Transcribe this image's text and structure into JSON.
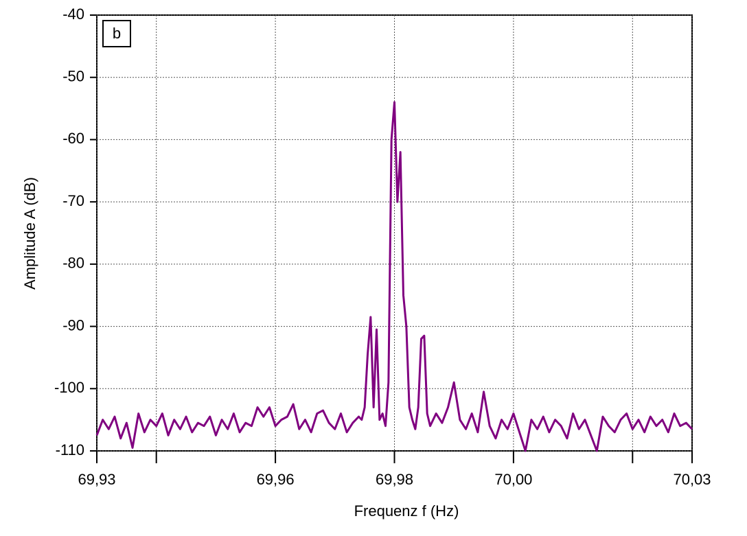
{
  "chart_data": {
    "type": "line",
    "annotation": "b",
    "xlabel": "Frequenz f (Hz)",
    "ylabel": "Amplitude A (dB)",
    "color": "#800080",
    "grid": true,
    "xlim": [
      69.93,
      70.03
    ],
    "ylim": [
      -110,
      -40
    ],
    "xticks": [
      {
        "value": 69.93,
        "label": "69,93"
      },
      {
        "value": 69.94,
        "label": null
      },
      {
        "value": 69.96,
        "label": "69,96"
      },
      {
        "value": 69.98,
        "label": "69,98"
      },
      {
        "value": 70.0,
        "label": "70,00"
      },
      {
        "value": 70.02,
        "label": null
      },
      {
        "value": 70.03,
        "label": "70,03"
      }
    ],
    "yticks": [
      -110,
      -100,
      -90,
      -80,
      -70,
      -60,
      -50,
      -40
    ],
    "x": [
      69.93,
      69.931,
      69.932,
      69.933,
      69.934,
      69.935,
      69.936,
      69.937,
      69.938,
      69.939,
      69.94,
      69.941,
      69.942,
      69.943,
      69.944,
      69.945,
      69.946,
      69.947,
      69.948,
      69.949,
      69.95,
      69.951,
      69.952,
      69.953,
      69.954,
      69.955,
      69.956,
      69.957,
      69.958,
      69.959,
      69.96,
      69.961,
      69.962,
      69.963,
      69.964,
      69.965,
      69.966,
      69.967,
      69.968,
      69.969,
      69.97,
      69.971,
      69.972,
      69.973,
      69.974,
      69.9745,
      69.975,
      69.9755,
      69.976,
      69.9765,
      69.977,
      69.9775,
      69.978,
      69.9785,
      69.979,
      69.9795,
      69.98,
      69.9805,
      69.981,
      69.9815,
      69.982,
      69.9825,
      69.983,
      69.9835,
      69.984,
      69.9845,
      69.985,
      69.9855,
      69.986,
      69.987,
      69.988,
      69.989,
      69.99,
      69.991,
      69.992,
      69.993,
      69.994,
      69.995,
      69.996,
      69.997,
      69.998,
      69.999,
      70.0,
      70.001,
      70.002,
      70.003,
      70.004,
      70.005,
      70.006,
      70.007,
      70.008,
      70.009,
      70.01,
      70.011,
      70.012,
      70.013,
      70.014,
      70.015,
      70.016,
      70.017,
      70.018,
      70.019,
      70.02,
      70.021,
      70.022,
      70.023,
      70.024,
      70.025,
      70.026,
      70.027,
      70.028,
      70.029,
      70.03
    ],
    "values": [
      -107.5,
      -105,
      -106.5,
      -104.5,
      -108,
      -105.5,
      -109.5,
      -104,
      -107,
      -105,
      -106,
      -104,
      -107.5,
      -105,
      -106.5,
      -104.5,
      -107,
      -105.5,
      -106,
      -104.5,
      -107.5,
      -105,
      -106.5,
      -104,
      -107,
      -105.5,
      -106,
      -103,
      -104.5,
      -103,
      -106,
      -105,
      -104.5,
      -102.5,
      -106.5,
      -105,
      -107,
      -104,
      -103.5,
      -105.5,
      -106.5,
      -104,
      -107,
      -105.5,
      -104.5,
      -105,
      -103,
      -94.5,
      -88.5,
      -103,
      -90.5,
      -105,
      -104,
      -106,
      -99,
      -60,
      -54,
      -70,
      -62,
      -85,
      -90,
      -103,
      -105,
      -106.5,
      -103,
      -92,
      -91.5,
      -104,
      -106,
      -104,
      -105.5,
      -103,
      -99,
      -105,
      -106.5,
      -104,
      -107,
      -100.5,
      -106,
      -108,
      -105,
      -106.5,
      -104,
      -107,
      -110,
      -105,
      -106.5,
      -104.5,
      -107,
      -105,
      -106,
      -108,
      -104,
      -106.5,
      -105,
      -107.5,
      -110,
      -104.5,
      -106,
      -107,
      -105,
      -104,
      -106.5,
      -105,
      -107,
      -104.5,
      -106,
      -105,
      -107,
      -104,
      -106,
      -105.5,
      -106.5
    ]
  }
}
